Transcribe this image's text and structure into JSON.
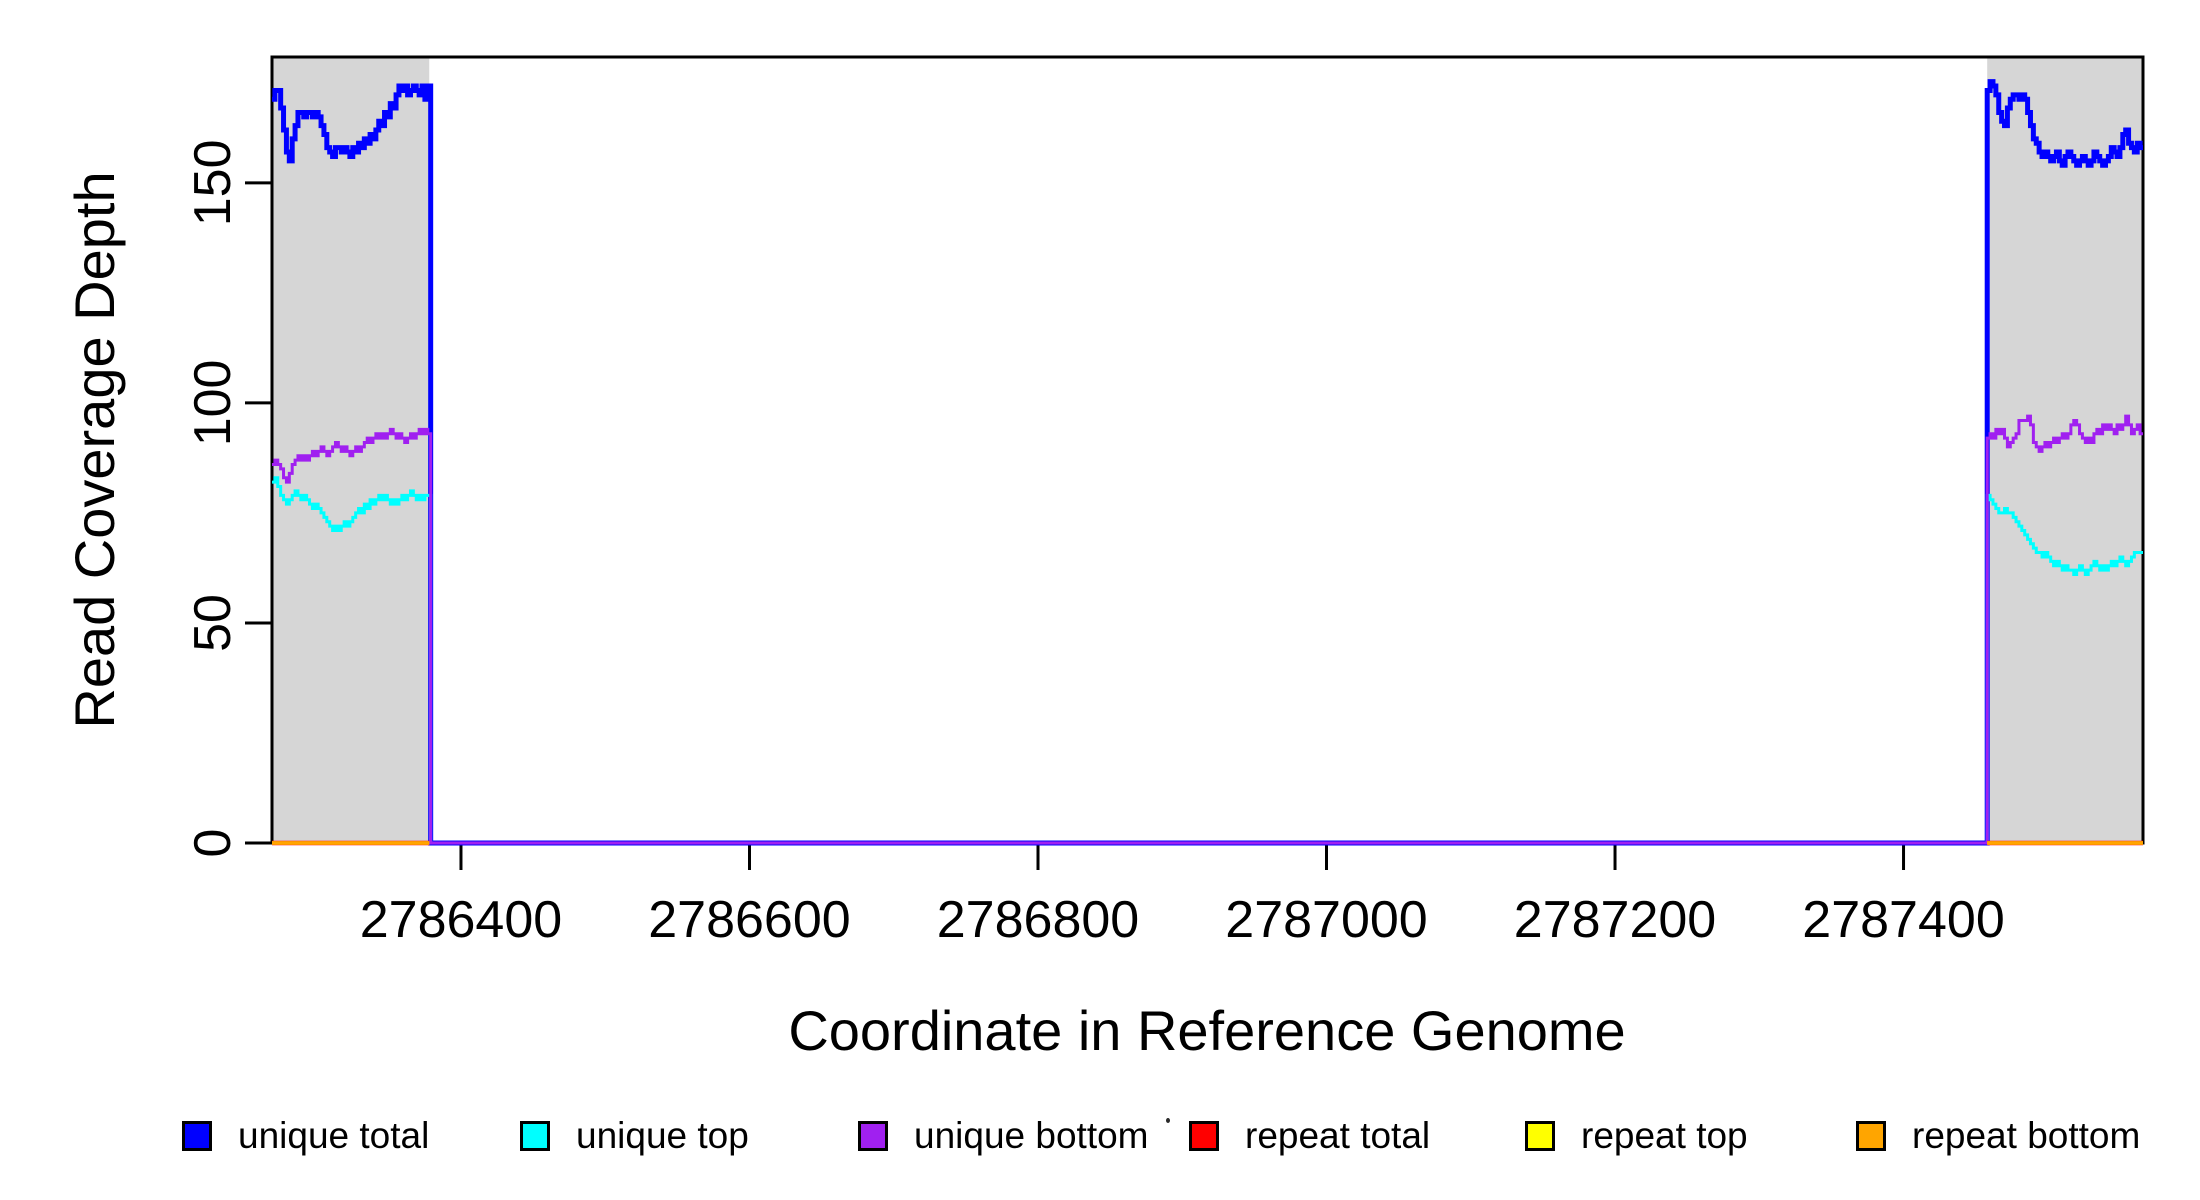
{
  "chart_data": {
    "type": "line",
    "line_style": "step-after",
    "title": "",
    "xlabel": "Coordinate in Reference Genome",
    "ylabel": "Read Coverage Depth",
    "xlim": [
      2786269,
      2787566
    ],
    "ylim": [
      0,
      178.6
    ],
    "x_ticks": [
      2786400,
      2786600,
      2786800,
      2787000,
      2787200,
      2787400
    ],
    "y_ticks": [
      0,
      50,
      100,
      150
    ],
    "grid": false,
    "plot_border_color": "#000000",
    "background_color": "#ffffff",
    "shaded_regions": [
      {
        "name": "left-coverage-block",
        "x0": 2786269,
        "x1": 2786378,
        "color": "#d6d6d6"
      },
      {
        "name": "right-coverage-block",
        "x0": 2787458,
        "x1": 2787566,
        "color": "#d6d6d6"
      }
    ],
    "step_unit": 2,
    "series": [
      {
        "name": "unique total",
        "color": "#0000ff",
        "width": 5,
        "connect_through_zero": true,
        "segments": [
          {
            "x_start": 2786269,
            "values": [
              169,
              171,
              171,
              167,
              162,
              157,
              155,
              160,
              163,
              166,
              166,
              165,
              166,
              166,
              165,
              166,
              165,
              163,
              161,
              158,
              157,
              156,
              158,
              158,
              157,
              158,
              157,
              156,
              158,
              157,
              159,
              158,
              160,
              159,
              161,
              160,
              162,
              164,
              163,
              166,
              165,
              168,
              167,
              170,
              172,
              171,
              172,
              170,
              171,
              172,
              171,
              170,
              172,
              169,
              172
            ]
          },
          {
            "x_start": 2787458,
            "values": [
              171,
              173,
              172,
              170,
              166,
              164,
              163,
              167,
              169,
              170,
              170,
              169,
              170,
              169,
              166,
              163,
              160,
              159,
              157,
              156,
              157,
              156,
              155,
              156,
              157,
              155,
              154,
              156,
              157,
              156,
              155,
              154,
              155,
              156,
              155,
              154,
              155,
              157,
              156,
              155,
              154,
              155,
              156,
              158,
              157,
              156,
              158,
              161,
              162,
              159,
              158,
              157,
              159,
              158
            ]
          }
        ]
      },
      {
        "name": "unique top",
        "color": "#00ffff",
        "width": 3,
        "connect_through_zero": true,
        "segments": [
          {
            "x_start": 2786269,
            "values": [
              82,
              83,
              81,
              79,
              78,
              77,
              78,
              79,
              80,
              79,
              78,
              79,
              78,
              77,
              76,
              77,
              76,
              75,
              74,
              73,
              72,
              71,
              72,
              71,
              72,
              73,
              72,
              73,
              74,
              75,
              76,
              75,
              77,
              76,
              78,
              77,
              78,
              79,
              78,
              79,
              78,
              77,
              78,
              77,
              78,
              79,
              78,
              79,
              80,
              79,
              78,
              79,
              78,
              79,
              79
            ]
          },
          {
            "x_start": 2787458,
            "values": [
              79,
              78,
              77,
              76,
              75,
              75,
              76,
              75,
              75,
              74,
              73,
              72,
              71,
              70,
              69,
              68,
              67,
              66,
              66,
              65,
              66,
              65,
              64,
              63,
              64,
              63,
              62,
              63,
              62,
              62,
              61,
              62,
              63,
              62,
              61,
              62,
              63,
              64,
              63,
              62,
              63,
              62,
              63,
              64,
              63,
              64,
              65,
              64,
              63,
              64,
              65,
              66,
              66,
              66
            ]
          }
        ]
      },
      {
        "name": "unique bottom",
        "color": "#a020f0",
        "width": 3,
        "connect_through_zero": true,
        "segments": [
          {
            "x_start": 2786269,
            "values": [
              86,
              87,
              86,
              85,
              83,
              82,
              84,
              86,
              87,
              88,
              87,
              88,
              87,
              88,
              89,
              88,
              89,
              90,
              89,
              88,
              89,
              90,
              91,
              90,
              89,
              90,
              89,
              88,
              89,
              90,
              89,
              90,
              91,
              92,
              91,
              92,
              93,
              92,
              93,
              92,
              93,
              94,
              93,
              92,
              93,
              92,
              91,
              92,
              93,
              92,
              93,
              94,
              93,
              94,
              93
            ]
          },
          {
            "x_start": 2787458,
            "values": [
              92,
              93,
              92,
              94,
              93,
              94,
              92,
              90,
              91,
              92,
              93,
              96,
              96,
              96,
              97,
              95,
              91,
              90,
              89,
              90,
              91,
              90,
              91,
              92,
              91,
              92,
              93,
              92,
              93,
              95,
              96,
              95,
              93,
              92,
              91,
              92,
              91,
              93,
              94,
              93,
              95,
              94,
              95,
              94,
              93,
              95,
              94,
              95,
              97,
              95,
              93,
              94,
              95,
              93
            ]
          }
        ]
      },
      {
        "name": "repeat total",
        "color": "#ff0000",
        "width": 4.5,
        "connect_through_zero": false,
        "segments": [
          {
            "x_start": 2786269,
            "x_end": 2786378,
            "values": [
              0,
              0
            ]
          },
          {
            "x_start": 2787458,
            "x_end": 2787566,
            "values": [
              0,
              0
            ]
          }
        ]
      },
      {
        "name": "repeat top",
        "color": "#ffff00",
        "width": 3.5,
        "connect_through_zero": false,
        "segments": [
          {
            "x_start": 2786269,
            "x_end": 2786378,
            "values": [
              0,
              0
            ]
          },
          {
            "x_start": 2787458,
            "x_end": 2787566,
            "values": [
              0,
              0
            ]
          }
        ]
      },
      {
        "name": "repeat bottom",
        "color": "#ffa500",
        "width": 3,
        "connect_through_zero": false,
        "segments": [
          {
            "x_start": 2786269,
            "x_end": 2786378,
            "values": [
              0,
              0
            ]
          },
          {
            "x_start": 2787458,
            "x_end": 2787566,
            "values": [
              0,
              0
            ]
          }
        ]
      }
    ],
    "legend": {
      "position": "bottom",
      "items": [
        {
          "label": "unique total",
          "color": "#0000ff"
        },
        {
          "label": "unique top",
          "color": "#00ffff"
        },
        {
          "label": "unique bottom",
          "color": "#a020f0"
        },
        {
          "label": "repeat total",
          "color": "#ff0000"
        },
        {
          "label": "repeat top",
          "color": "#ffff00"
        },
        {
          "label": "repeat bottom",
          "color": "#ffa500"
        }
      ]
    }
  }
}
